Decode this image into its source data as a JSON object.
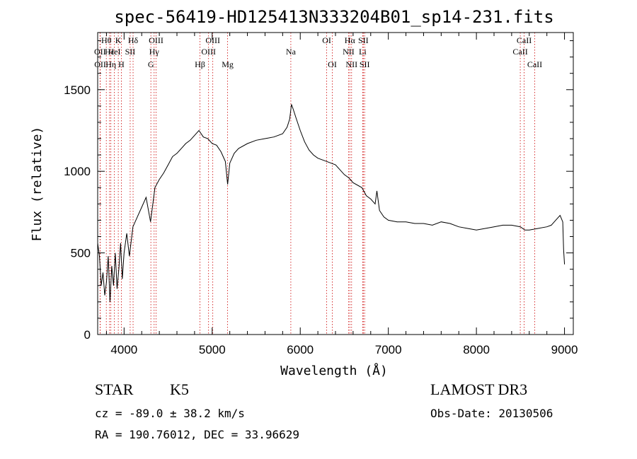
{
  "chart_data": {
    "type": "line",
    "title": "spec-56419-HD125413N333204B01_sp14-231.fits",
    "xlabel": "Wavelength (Å)",
    "ylabel": "Flux (relative)",
    "xlim": [
      3700,
      9100
    ],
    "ylim": [
      0,
      1850
    ],
    "xticks": [
      4000,
      5000,
      6000,
      7000,
      8000,
      9000
    ],
    "yticks": [
      0,
      500,
      1000,
      1500
    ],
    "grid": false,
    "series": [
      {
        "x": [
          3700,
          3720,
          3740,
          3760,
          3780,
          3800,
          3820,
          3840,
          3860,
          3880,
          3900,
          3920,
          3940,
          3960,
          3980,
          4000,
          4030,
          4060,
          4100,
          4150,
          4200,
          4250,
          4300,
          4350,
          4400,
          4450,
          4500,
          4550,
          4600,
          4650,
          4700,
          4750,
          4800,
          4850,
          4900,
          4950,
          5000,
          5050,
          5100,
          5150,
          5175,
          5200,
          5250,
          5300,
          5400,
          5500,
          5600,
          5700,
          5800,
          5850,
          5880,
          5900,
          5920,
          5950,
          6000,
          6050,
          6100,
          6150,
          6200,
          6300,
          6400,
          6500,
          6550,
          6600,
          6700,
          6750,
          6800,
          6850,
          6870,
          6900,
          6950,
          7000,
          7100,
          7200,
          7300,
          7400,
          7500,
          7600,
          7700,
          7800,
          7900,
          8000,
          8100,
          8200,
          8300,
          8400,
          8500,
          8550,
          8600,
          8700,
          8800,
          8850,
          8900,
          8950,
          8980,
          8990,
          9000
        ],
        "y": [
          560,
          480,
          300,
          380,
          240,
          320,
          480,
          200,
          420,
          300,
          500,
          280,
          400,
          560,
          340,
          500,
          620,
          480,
          660,
          720,
          780,
          840,
          690,
          900,
          950,
          990,
          1040,
          1090,
          1110,
          1140,
          1170,
          1190,
          1220,
          1250,
          1210,
          1200,
          1170,
          1160,
          1120,
          1060,
          920,
          1050,
          1110,
          1140,
          1170,
          1190,
          1200,
          1210,
          1230,
          1270,
          1320,
          1410,
          1380,
          1330,
          1250,
          1180,
          1130,
          1100,
          1080,
          1060,
          1040,
          980,
          960,
          930,
          900,
          850,
          830,
          800,
          880,
          760,
          720,
          700,
          690,
          690,
          680,
          680,
          670,
          690,
          680,
          660,
          650,
          640,
          650,
          660,
          670,
          670,
          660,
          640,
          640,
          650,
          660,
          670,
          700,
          730,
          690,
          520,
          430
        ]
      }
    ],
    "lines": [
      {
        "label": "Hθ",
        "x": 3798,
        "row": 1
      },
      {
        "label": "OII",
        "x": 3727,
        "row": 2
      },
      {
        "label": "Hε",
        "x": 3835,
        "row": 2
      },
      {
        "label": "Hη",
        "x": 3850,
        "row": 3
      },
      {
        "label": "OII",
        "x": 3729,
        "row": 3
      },
      {
        "label": "K",
        "x": 3934,
        "row": 1
      },
      {
        "label": "HeI",
        "x": 3889,
        "row": 2
      },
      {
        "label": "H",
        "x": 3969,
        "row": 3
      },
      {
        "label": "SII",
        "x": 4069,
        "row": 2
      },
      {
        "label": "Hδ",
        "x": 4102,
        "row": 1
      },
      {
        "label": "OIII",
        "x": 4363,
        "row": 1
      },
      {
        "label": "Hγ",
        "x": 4341,
        "row": 2
      },
      {
        "label": "G",
        "x": 4304,
        "row": 3
      },
      {
        "label": "Hβ",
        "x": 4861,
        "row": 3
      },
      {
        "label": "OIII",
        "x": 5007,
        "row": 1
      },
      {
        "label": "OIII",
        "x": 4959,
        "row": 2
      },
      {
        "label": "Mg",
        "x": 5175,
        "row": 3
      },
      {
        "label": "Na",
        "x": 5893,
        "row": 2
      },
      {
        "label": "OI",
        "x": 6300,
        "row": 1
      },
      {
        "label": "OI",
        "x": 6364,
        "row": 3
      },
      {
        "label": "Hα",
        "x": 6563,
        "row": 1
      },
      {
        "label": "SII",
        "x": 6716,
        "row": 1
      },
      {
        "label": "NII",
        "x": 6548,
        "row": 2
      },
      {
        "label": "Li",
        "x": 6708,
        "row": 2
      },
      {
        "label": "NII",
        "x": 6583,
        "row": 3
      },
      {
        "label": "SII",
        "x": 6731,
        "row": 3
      },
      {
        "label": "CaII",
        "x": 8542,
        "row": 1
      },
      {
        "label": "CaII",
        "x": 8498,
        "row": 2
      },
      {
        "label": "CaII",
        "x": 8662,
        "row": 3
      }
    ]
  },
  "info": {
    "class": "STAR",
    "subclass": "K5",
    "survey": "LAMOST DR3",
    "cz": "cz = -89.0 ± 38.2 km/s",
    "obs_date": "Obs-Date: 20130506",
    "radec": "RA = 190.76012, DEC =  33.96629"
  },
  "colors": {
    "spectrum": "#000000",
    "line_markers": "#cc0000",
    "frame": "#000000"
  }
}
